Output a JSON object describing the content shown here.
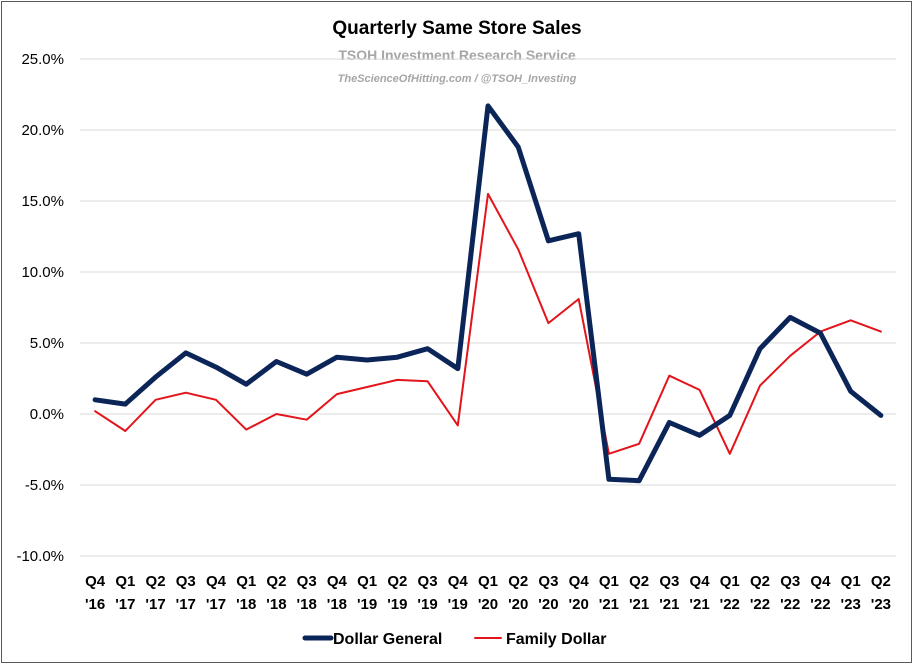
{
  "chart_data": {
    "type": "line",
    "title": "Quarterly Same Store Sales",
    "subtitle": "TSOH Investment Research Service",
    "credit": "TheScienceOfHitting.com / @TSOH_Investing",
    "categories": [
      [
        "Q4",
        "'16"
      ],
      [
        "Q1",
        "'17"
      ],
      [
        "Q2",
        "'17"
      ],
      [
        "Q3",
        "'17"
      ],
      [
        "Q4",
        "'17"
      ],
      [
        "Q1",
        "'18"
      ],
      [
        "Q2",
        "'18"
      ],
      [
        "Q3",
        "'18"
      ],
      [
        "Q4",
        "'18"
      ],
      [
        "Q1",
        "'19"
      ],
      [
        "Q2",
        "'19"
      ],
      [
        "Q3",
        "'19"
      ],
      [
        "Q4",
        "'19"
      ],
      [
        "Q1",
        "'20"
      ],
      [
        "Q2",
        "'20"
      ],
      [
        "Q3",
        "'20"
      ],
      [
        "Q4",
        "'20"
      ],
      [
        "Q1",
        "'21"
      ],
      [
        "Q2",
        "'21"
      ],
      [
        "Q3",
        "'21"
      ],
      [
        "Q4",
        "'21"
      ],
      [
        "Q1",
        "'22"
      ],
      [
        "Q2",
        "'22"
      ],
      [
        "Q3",
        "'22"
      ],
      [
        "Q4",
        "'22"
      ],
      [
        "Q1",
        "'23"
      ],
      [
        "Q2",
        "'23"
      ]
    ],
    "series": [
      {
        "name": "Dollar General",
        "color": "#0b2559",
        "values": [
          1.0,
          0.7,
          2.6,
          4.3,
          3.3,
          2.1,
          3.7,
          2.8,
          4.0,
          3.8,
          4.0,
          4.6,
          3.2,
          21.7,
          18.8,
          12.2,
          12.7,
          -4.6,
          -4.7,
          -0.6,
          -1.5,
          -0.1,
          4.6,
          6.8,
          5.7,
          1.6,
          -0.1
        ]
      },
      {
        "name": "Family Dollar",
        "color": "#e3141b",
        "values": [
          0.2,
          -1.2,
          1.0,
          1.5,
          1.0,
          -1.1,
          0.0,
          -0.4,
          1.4,
          1.9,
          2.4,
          2.3,
          -0.8,
          15.5,
          11.6,
          6.4,
          8.1,
          -2.8,
          -2.1,
          2.7,
          1.7,
          -2.8,
          2.0,
          4.1,
          5.8,
          6.6,
          5.8
        ]
      }
    ],
    "yticks": [
      "25.0%",
      "20.0%",
      "15.0%",
      "10.0%",
      "5.0%",
      "0.0%",
      "-5.0%",
      "-10.0%"
    ],
    "ylim": [
      -10,
      25
    ],
    "grid": true,
    "legend_position": "bottom"
  }
}
